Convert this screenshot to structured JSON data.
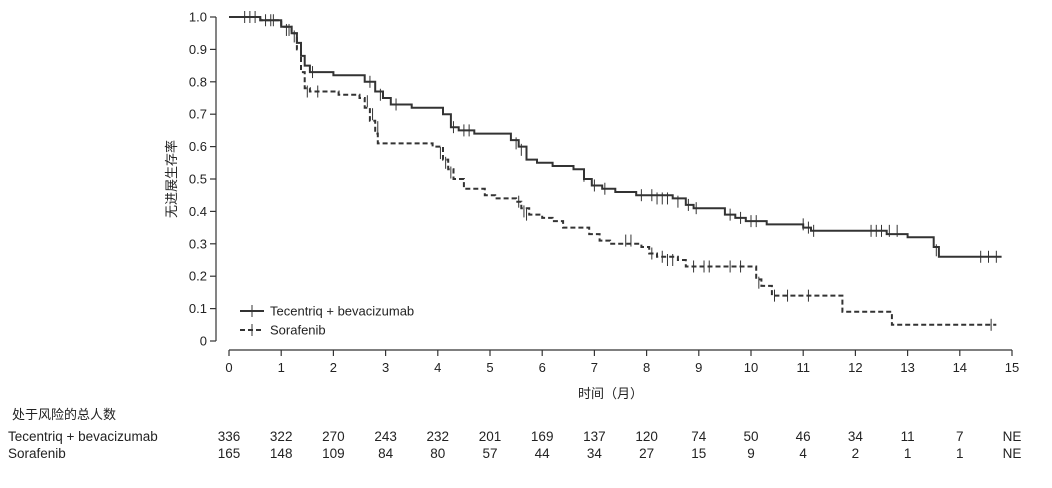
{
  "chart_data": {
    "type": "line",
    "ylabel": "无进展生存率",
    "xlabel": "时间（月）",
    "xlim": [
      0,
      15
    ],
    "ylim": [
      0,
      1.0
    ],
    "x_ticks": [
      "0",
      "1",
      "2",
      "3",
      "4",
      "5",
      "6",
      "7",
      "8",
      "9",
      "10",
      "11",
      "12",
      "13",
      "14",
      "15"
    ],
    "y_ticks": [
      "0",
      "0.1",
      "0.2",
      "0.3",
      "0.4",
      "0.5",
      "0.6",
      "0.7",
      "0.8",
      "0.9",
      "1.0"
    ],
    "legend_position": "bottom-left",
    "series": [
      {
        "name": "Tecentriq + bevacizumab",
        "style": "solid",
        "color": "#333333",
        "step_points": [
          [
            0,
            1.0
          ],
          [
            0.6,
            0.99
          ],
          [
            1.0,
            0.97
          ],
          [
            1.2,
            0.95
          ],
          [
            1.3,
            0.92
          ],
          [
            1.38,
            0.88
          ],
          [
            1.45,
            0.85
          ],
          [
            1.55,
            0.83
          ],
          [
            2.0,
            0.82
          ],
          [
            2.6,
            0.8
          ],
          [
            2.8,
            0.77
          ],
          [
            2.95,
            0.75
          ],
          [
            3.1,
            0.73
          ],
          [
            3.5,
            0.72
          ],
          [
            4.1,
            0.7
          ],
          [
            4.25,
            0.66
          ],
          [
            4.4,
            0.65
          ],
          [
            4.7,
            0.64
          ],
          [
            5.4,
            0.62
          ],
          [
            5.55,
            0.6
          ],
          [
            5.7,
            0.56
          ],
          [
            5.9,
            0.55
          ],
          [
            6.2,
            0.54
          ],
          [
            6.6,
            0.53
          ],
          [
            6.8,
            0.5
          ],
          [
            6.95,
            0.48
          ],
          [
            7.15,
            0.47
          ],
          [
            7.4,
            0.46
          ],
          [
            7.8,
            0.45
          ],
          [
            8.5,
            0.44
          ],
          [
            8.75,
            0.42
          ],
          [
            8.9,
            0.41
          ],
          [
            9.3,
            0.41
          ],
          [
            9.5,
            0.39
          ],
          [
            9.7,
            0.38
          ],
          [
            9.9,
            0.37
          ],
          [
            10.3,
            0.36
          ],
          [
            11.0,
            0.35
          ],
          [
            11.15,
            0.34
          ],
          [
            12.6,
            0.33
          ],
          [
            13.0,
            0.32
          ],
          [
            13.5,
            0.29
          ],
          [
            13.6,
            0.26
          ],
          [
            14.8,
            0.26
          ]
        ],
        "censor": [
          [
            0.3,
            1.0
          ],
          [
            0.5,
            1.0
          ],
          [
            0.7,
            0.99
          ],
          [
            0.85,
            0.99
          ],
          [
            1.1,
            0.96
          ],
          [
            1.25,
            0.94
          ],
          [
            1.6,
            0.83
          ],
          [
            2.7,
            0.8
          ],
          [
            2.9,
            0.76
          ],
          [
            3.2,
            0.73
          ],
          [
            4.3,
            0.66
          ],
          [
            4.5,
            0.65
          ],
          [
            4.6,
            0.65
          ],
          [
            5.5,
            0.61
          ],
          [
            5.6,
            0.59
          ],
          [
            6.8,
            0.51
          ],
          [
            7.0,
            0.48
          ],
          [
            7.2,
            0.47
          ],
          [
            7.9,
            0.45
          ],
          [
            8.1,
            0.45
          ],
          [
            8.2,
            0.44
          ],
          [
            8.3,
            0.44
          ],
          [
            8.4,
            0.44
          ],
          [
            8.6,
            0.43
          ],
          [
            8.8,
            0.42
          ],
          [
            8.95,
            0.41
          ],
          [
            9.6,
            0.39
          ],
          [
            9.8,
            0.38
          ],
          [
            10.0,
            0.37
          ],
          [
            10.1,
            0.37
          ],
          [
            11.0,
            0.36
          ],
          [
            11.1,
            0.35
          ],
          [
            11.2,
            0.34
          ],
          [
            12.3,
            0.34
          ],
          [
            12.4,
            0.34
          ],
          [
            12.5,
            0.34
          ],
          [
            12.65,
            0.34
          ],
          [
            12.8,
            0.34
          ],
          [
            13.55,
            0.28
          ],
          [
            14.4,
            0.26
          ],
          [
            14.55,
            0.26
          ],
          [
            14.7,
            0.26
          ]
        ]
      },
      {
        "name": "Sorafenib",
        "style": "dashed",
        "color": "#333333",
        "step_points": [
          [
            0,
            1.0
          ],
          [
            0.6,
            0.99
          ],
          [
            1.0,
            0.97
          ],
          [
            1.2,
            0.95
          ],
          [
            1.3,
            0.9
          ],
          [
            1.38,
            0.83
          ],
          [
            1.45,
            0.78
          ],
          [
            1.55,
            0.77
          ],
          [
            2.1,
            0.76
          ],
          [
            2.5,
            0.75
          ],
          [
            2.6,
            0.72
          ],
          [
            2.7,
            0.68
          ],
          [
            2.8,
            0.64
          ],
          [
            2.85,
            0.61
          ],
          [
            3.9,
            0.6
          ],
          [
            4.1,
            0.56
          ],
          [
            4.2,
            0.53
          ],
          [
            4.3,
            0.5
          ],
          [
            4.5,
            0.47
          ],
          [
            4.9,
            0.45
          ],
          [
            5.1,
            0.44
          ],
          [
            5.5,
            0.43
          ],
          [
            5.6,
            0.41
          ],
          [
            5.75,
            0.39
          ],
          [
            6.0,
            0.38
          ],
          [
            6.2,
            0.37
          ],
          [
            6.4,
            0.35
          ],
          [
            6.9,
            0.33
          ],
          [
            7.1,
            0.31
          ],
          [
            7.3,
            0.3
          ],
          [
            7.9,
            0.29
          ],
          [
            8.05,
            0.27
          ],
          [
            8.2,
            0.26
          ],
          [
            8.6,
            0.25
          ],
          [
            8.75,
            0.23
          ],
          [
            9.9,
            0.23
          ],
          [
            10.1,
            0.19
          ],
          [
            10.2,
            0.17
          ],
          [
            10.4,
            0.14
          ],
          [
            11.4,
            0.14
          ],
          [
            11.75,
            0.09
          ],
          [
            12.7,
            0.05
          ],
          [
            14.7,
            0.05
          ]
        ],
        "censor": [
          [
            0.4,
            1.0
          ],
          [
            0.8,
            0.99
          ],
          [
            1.15,
            0.96
          ],
          [
            1.5,
            0.77
          ],
          [
            1.7,
            0.77
          ],
          [
            2.65,
            0.74
          ],
          [
            2.75,
            0.7
          ],
          [
            2.85,
            0.66
          ],
          [
            4.05,
            0.58
          ],
          [
            4.15,
            0.55
          ],
          [
            4.25,
            0.52
          ],
          [
            5.55,
            0.43
          ],
          [
            5.65,
            0.4
          ],
          [
            5.7,
            0.39
          ],
          [
            7.6,
            0.31
          ],
          [
            7.7,
            0.31
          ],
          [
            8.1,
            0.27
          ],
          [
            8.3,
            0.26
          ],
          [
            8.4,
            0.25
          ],
          [
            8.5,
            0.25
          ],
          [
            8.9,
            0.23
          ],
          [
            9.1,
            0.23
          ],
          [
            9.2,
            0.23
          ],
          [
            9.6,
            0.23
          ],
          [
            9.8,
            0.23
          ],
          [
            10.15,
            0.18
          ],
          [
            10.45,
            0.14
          ],
          [
            10.7,
            0.14
          ],
          [
            11.1,
            0.14
          ],
          [
            14.6,
            0.05
          ]
        ]
      }
    ]
  },
  "risk_table": {
    "title": "处于风险的总人数",
    "rows": [
      {
        "name": "Tecentriq + bevacizumab",
        "values": [
          "336",
          "322",
          "270",
          "243",
          "232",
          "201",
          "169",
          "137",
          "120",
          "74",
          "50",
          "46",
          "34",
          "11",
          "7",
          "NE"
        ]
      },
      {
        "name": "Sorafenib",
        "values": [
          "165",
          "148",
          "109",
          "84",
          "80",
          "57",
          "44",
          "34",
          "27",
          "15",
          "9",
          "4",
          "2",
          "1",
          "1",
          "NE"
        ]
      }
    ]
  }
}
